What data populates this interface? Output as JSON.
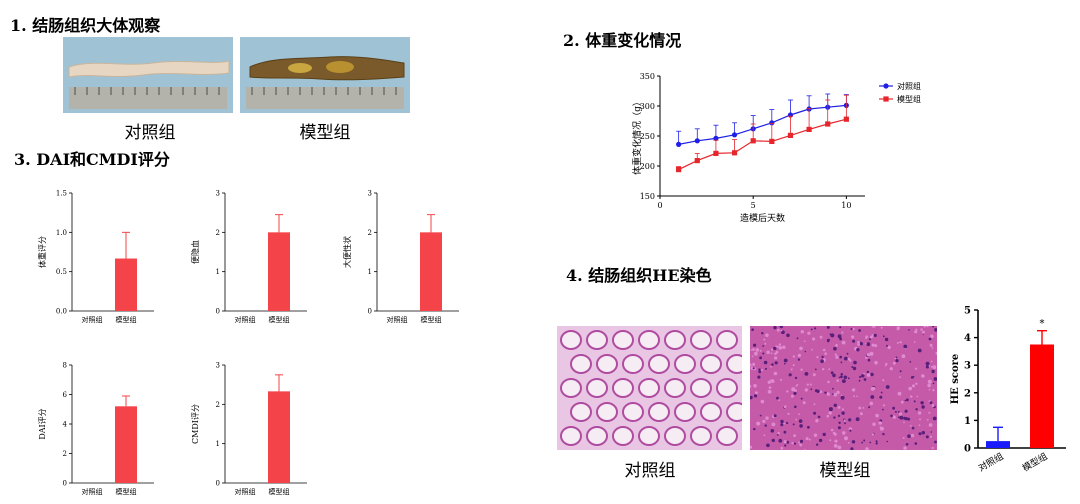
{
  "sections": {
    "s1": "1. 结肠组织大体观察",
    "s2": "2. 体重变化情况",
    "s3": "3. DAI和CMDI评分",
    "s4": "4. 结肠组织HE染色"
  },
  "photos": {
    "colon_control_caption": "对照组",
    "colon_model_caption": "模型组",
    "he_control_caption": "对照组",
    "he_model_caption": "模型组"
  },
  "chart_data": [
    {
      "id": "weight",
      "type": "line",
      "xlabel": "造模后天数",
      "ylabel": "体重变化情况（g）",
      "xlim": [
        0,
        11
      ],
      "ylim": [
        150,
        350
      ],
      "xticks": [
        0,
        5,
        10
      ],
      "yticks": [
        150,
        200,
        250,
        300,
        350
      ],
      "legend_position": "top-right",
      "series": [
        {
          "name": "对照组",
          "color": "#1f1fe6",
          "marker": "circle",
          "x": [
            1,
            2,
            3,
            4,
            5,
            6,
            7,
            8,
            9,
            10
          ],
          "y": [
            236,
            242,
            246,
            252,
            262,
            272,
            285,
            295,
            298,
            301
          ],
          "err": [
            22,
            20,
            22,
            20,
            22,
            22,
            25,
            22,
            22,
            18
          ]
        },
        {
          "name": "模型组",
          "color": "#e6262b",
          "marker": "square",
          "x": [
            1,
            2,
            3,
            4,
            5,
            6,
            7,
            8,
            9,
            10
          ],
          "y": [
            194,
            209,
            221,
            222,
            242,
            241,
            251,
            261,
            270,
            278
          ],
          "err": [
            5,
            12,
            22,
            22,
            28,
            30,
            32,
            35,
            40,
            40
          ]
        }
      ]
    },
    {
      "id": "bar1",
      "type": "bar",
      "categories": [
        "对照组",
        "模型组"
      ],
      "values": [
        0,
        0.667
      ],
      "errors": [
        0,
        0.333
      ],
      "ylabel": "体重评分",
      "ylim": [
        0,
        1.5
      ],
      "yticks": [
        "0.0",
        "0.5",
        "1.0",
        "1.5"
      ],
      "color": "#f5434a"
    },
    {
      "id": "bar2",
      "type": "bar",
      "categories": [
        "对照组",
        "模型组"
      ],
      "values": [
        0,
        2.0
      ],
      "errors": [
        0,
        0.45
      ],
      "ylabel": "便隐血",
      "ylim": [
        0,
        3
      ],
      "yticks": [
        "0",
        "1",
        "2",
        "3"
      ],
      "color": "#f5434a"
    },
    {
      "id": "bar3",
      "type": "bar",
      "categories": [
        "对照组",
        "模型组"
      ],
      "values": [
        0,
        2.0
      ],
      "errors": [
        0,
        0.45
      ],
      "ylabel": "大便性状",
      "ylim": [
        0,
        3
      ],
      "yticks": [
        "0",
        "1",
        "2",
        "3"
      ],
      "color": "#f5434a"
    },
    {
      "id": "bar4",
      "type": "bar",
      "categories": [
        "对照组",
        "模型组"
      ],
      "values": [
        0,
        5.2
      ],
      "errors": [
        0,
        0.7
      ],
      "ylabel": "DAI评分",
      "ylim": [
        0,
        8
      ],
      "yticks": [
        "0",
        "2",
        "4",
        "6",
        "8"
      ],
      "color": "#f5434a"
    },
    {
      "id": "bar5",
      "type": "bar",
      "categories": [
        "对照组",
        "模型组"
      ],
      "values": [
        0,
        2.33
      ],
      "errors": [
        0,
        0.42
      ],
      "ylabel": "CMDI评分",
      "ylim": [
        0,
        3
      ],
      "yticks": [
        "0",
        "1",
        "2",
        "3"
      ],
      "color": "#f5434a"
    },
    {
      "id": "he",
      "type": "bar",
      "categories": [
        "对照组",
        "模型组"
      ],
      "values": [
        0.25,
        3.75
      ],
      "errors": [
        0.5,
        0.5
      ],
      "colors": [
        "#1a1aff",
        "#ff0000"
      ],
      "ylabel": "HE score",
      "ylim": [
        0,
        5
      ],
      "yticks": [
        "0",
        "1",
        "2",
        "3",
        "4",
        "5"
      ],
      "annotation": "*"
    }
  ]
}
